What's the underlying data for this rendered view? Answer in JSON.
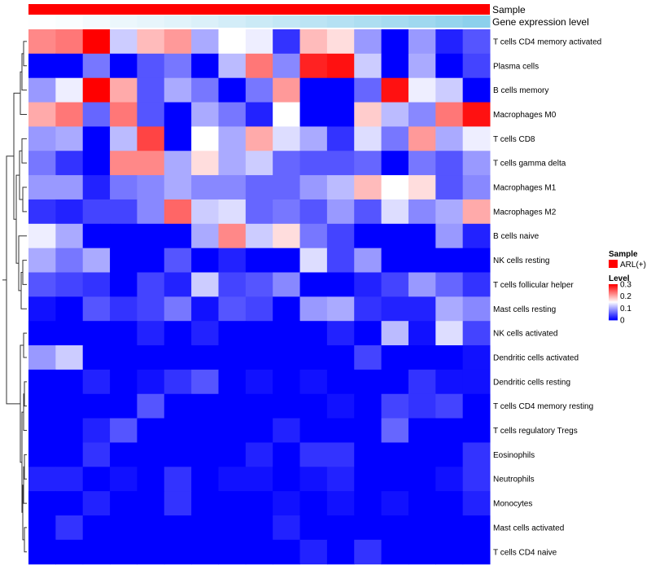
{
  "chart_data": {
    "type": "heatmap",
    "annotation_sample_label": "Sample",
    "annotation_expression_label": "Gene expression level",
    "colors": {
      "sample": "#ff0000",
      "expr_low": "#ffffff",
      "expr_high": "#87ceeb",
      "low": "#0000ff",
      "mid": "#ffffff",
      "high": "#ff0000",
      "dendrogram": "#333333"
    },
    "scale": {
      "min": 0,
      "mid": 0.15,
      "max": 0.3
    },
    "legend": {
      "sample_title": "Sample",
      "sample_entry": "ARL(+)",
      "level_title": "Level",
      "ticks": [
        "0.3",
        "0.2",
        "0.1",
        "0"
      ],
      "tick_values": [
        0.3,
        0.2,
        0.1,
        0
      ]
    },
    "n_columns": 17,
    "rows": [
      {
        "name": "T cells CD4 memory activated",
        "values": [
          0.22,
          0.23,
          0.3,
          0.12,
          0.19,
          0.21,
          0.1,
          0.15,
          0.14,
          0.03,
          0.19,
          0.17,
          0.09,
          0.0,
          0.09,
          0.02,
          0.05
        ]
      },
      {
        "name": "Plasma cells",
        "values": [
          0.0,
          0.0,
          0.07,
          0.0,
          0.05,
          0.07,
          0.0,
          0.11,
          0.23,
          0.08,
          0.28,
          0.29,
          0.12,
          0.0,
          0.1,
          0.0,
          0.04
        ]
      },
      {
        "name": "B cells memory",
        "values": [
          0.09,
          0.14,
          0.3,
          0.2,
          0.05,
          0.1,
          0.07,
          0.0,
          0.07,
          0.21,
          0.0,
          0.0,
          0.06,
          0.29,
          0.14,
          0.12,
          0.0
        ]
      },
      {
        "name": "Macrophages M0",
        "values": [
          0.2,
          0.23,
          0.06,
          0.23,
          0.05,
          0.0,
          0.1,
          0.07,
          0.02,
          0.15,
          0.0,
          0.0,
          0.18,
          0.11,
          0.08,
          0.23,
          0.29
        ]
      },
      {
        "name": "T cells CD8",
        "values": [
          0.09,
          0.1,
          0.0,
          0.11,
          0.26,
          0.0,
          0.15,
          0.1,
          0.2,
          0.13,
          0.1,
          0.03,
          0.13,
          0.07,
          0.21,
          0.1,
          0.14
        ]
      },
      {
        "name": "T cells gamma delta",
        "values": [
          0.07,
          0.03,
          0.0,
          0.22,
          0.22,
          0.1,
          0.17,
          0.1,
          0.12,
          0.06,
          0.05,
          0.05,
          0.06,
          0.0,
          0.07,
          0.05,
          0.09
        ]
      },
      {
        "name": "Macrophages M1",
        "values": [
          0.09,
          0.09,
          0.02,
          0.07,
          0.08,
          0.1,
          0.08,
          0.08,
          0.06,
          0.06,
          0.09,
          0.11,
          0.19,
          0.15,
          0.17,
          0.05,
          0.08
        ]
      },
      {
        "name": "Macrophages M2",
        "values": [
          0.03,
          0.02,
          0.04,
          0.04,
          0.08,
          0.24,
          0.12,
          0.13,
          0.06,
          0.07,
          0.05,
          0.09,
          0.05,
          0.13,
          0.08,
          0.1,
          0.2
        ]
      },
      {
        "name": "B cells naive",
        "values": [
          0.14,
          0.1,
          0.0,
          0.0,
          0.0,
          0.0,
          0.1,
          0.22,
          0.12,
          0.17,
          0.07,
          0.04,
          0.0,
          0.0,
          0.0,
          0.09,
          0.02
        ]
      },
      {
        "name": "NK cells resting",
        "values": [
          0.1,
          0.07,
          0.1,
          0.0,
          0.0,
          0.05,
          0.0,
          0.02,
          0.0,
          0.0,
          0.13,
          0.04,
          0.09,
          0.0,
          0.0,
          0.0,
          0.0
        ]
      },
      {
        "name": "T cells follicular helper",
        "values": [
          0.05,
          0.04,
          0.03,
          0.0,
          0.04,
          0.02,
          0.12,
          0.04,
          0.05,
          0.08,
          0.0,
          0.0,
          0.02,
          0.04,
          0.09,
          0.06,
          0.03
        ]
      },
      {
        "name": "Mast cells resting",
        "values": [
          0.01,
          0.0,
          0.05,
          0.03,
          0.04,
          0.07,
          0.01,
          0.05,
          0.04,
          0.0,
          0.09,
          0.1,
          0.03,
          0.02,
          0.02,
          0.1,
          0.08
        ]
      },
      {
        "name": "NK cells activated",
        "values": [
          0.0,
          0.0,
          0.0,
          0.0,
          0.02,
          0.0,
          0.02,
          0.0,
          0.0,
          0.0,
          0.0,
          0.02,
          0.0,
          0.11,
          0.01,
          0.13,
          0.04
        ]
      },
      {
        "name": "Dendritic cells activated",
        "values": [
          0.09,
          0.12,
          0.0,
          0.0,
          0.0,
          0.0,
          0.0,
          0.0,
          0.0,
          0.0,
          0.0,
          0.0,
          0.04,
          0.0,
          0.0,
          0.0,
          0.01
        ]
      },
      {
        "name": "Dendritic cells resting",
        "values": [
          0.0,
          0.0,
          0.02,
          0.0,
          0.01,
          0.03,
          0.05,
          0.0,
          0.01,
          0.0,
          0.01,
          0.0,
          0.0,
          0.0,
          0.03,
          0.01,
          0.01
        ]
      },
      {
        "name": "T cells CD4 memory resting",
        "values": [
          0.0,
          0.0,
          0.0,
          0.0,
          0.05,
          0.0,
          0.0,
          0.0,
          0.0,
          0.0,
          0.0,
          0.01,
          0.0,
          0.04,
          0.03,
          0.04,
          0.0
        ]
      },
      {
        "name": "T cells regulatory  Tregs",
        "values": [
          0.0,
          0.0,
          0.02,
          0.05,
          0.0,
          0.0,
          0.0,
          0.0,
          0.0,
          0.02,
          0.0,
          0.0,
          0.0,
          0.06,
          0.0,
          0.0,
          0.0
        ]
      },
      {
        "name": "Eosinophils",
        "values": [
          0.0,
          0.0,
          0.03,
          0.0,
          0.0,
          0.0,
          0.0,
          0.0,
          0.02,
          0.0,
          0.03,
          0.03,
          0.0,
          0.0,
          0.0,
          0.0,
          0.03
        ]
      },
      {
        "name": "Neutrophils",
        "values": [
          0.02,
          0.02,
          0.0,
          0.01,
          0.0,
          0.03,
          0.0,
          0.01,
          0.01,
          0.0,
          0.01,
          0.02,
          0.0,
          0.0,
          0.0,
          0.01,
          0.03
        ]
      },
      {
        "name": "Monocytes",
        "values": [
          0.0,
          0.0,
          0.02,
          0.0,
          0.0,
          0.03,
          0.0,
          0.0,
          0.0,
          0.01,
          0.0,
          0.01,
          0.0,
          0.01,
          0.0,
          0.0,
          0.02
        ]
      },
      {
        "name": "Mast cells activated",
        "values": [
          0.0,
          0.03,
          0.0,
          0.0,
          0.0,
          0.0,
          0.0,
          0.0,
          0.0,
          0.02,
          0.0,
          0.0,
          0.0,
          0.0,
          0.0,
          0.0,
          0.0
        ]
      },
      {
        "name": "T cells CD4 naive",
        "values": [
          0.0,
          0.0,
          0.0,
          0.0,
          0.0,
          0.0,
          0.0,
          0.0,
          0.0,
          0.0,
          0.02,
          0.0,
          0.03,
          0.0,
          0.0,
          0.0,
          0.0
        ]
      }
    ],
    "expression_level": [
      0.02,
      0.05,
      0.1,
      0.16,
      0.2,
      0.25,
      0.3,
      0.37,
      0.43,
      0.5,
      0.56,
      0.62,
      0.68,
      0.74,
      0.8,
      0.88,
      0.96
    ]
  }
}
